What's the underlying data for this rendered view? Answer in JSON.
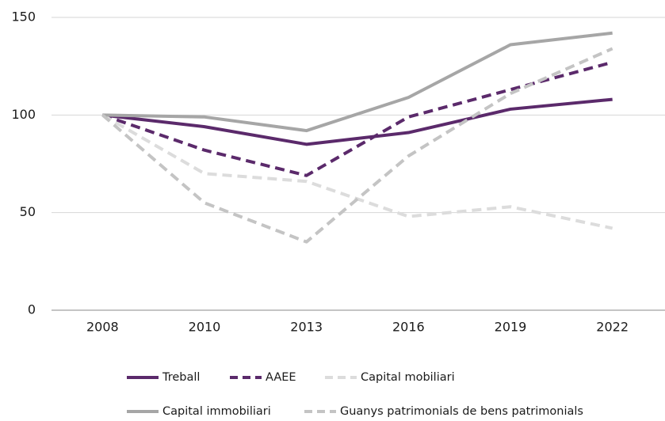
{
  "chart_data": {
    "type": "line",
    "categories": [
      "2008",
      "2010",
      "2013",
      "2016",
      "2019",
      "2022"
    ],
    "series": [
      {
        "name": "Treball",
        "color": "#5b2a6b",
        "dashed": false,
        "values": [
          100,
          94,
          85,
          91,
          103,
          108
        ]
      },
      {
        "name": "AAEE",
        "color": "#5b2a6b",
        "dashed": true,
        "values": [
          100,
          82,
          69,
          99,
          113,
          127
        ]
      },
      {
        "name": "Capital mobiliari",
        "color": "#dcdcdc",
        "dashed": true,
        "values": [
          100,
          70,
          66,
          48,
          53,
          42
        ]
      },
      {
        "name": "Capital immobiliari",
        "color": "#a6a6a6",
        "dashed": false,
        "values": [
          100,
          99,
          92,
          109,
          136,
          142
        ]
      },
      {
        "name": "Guanys patrimonials de bens patrimonials",
        "color": "#c4c4c4",
        "dashed": true,
        "values": [
          100,
          55,
          35,
          79,
          111,
          134
        ]
      }
    ],
    "ylim": [
      0,
      150
    ],
    "yticks": [
      0,
      50,
      100,
      150
    ],
    "grid": true,
    "legend": "bottom"
  }
}
